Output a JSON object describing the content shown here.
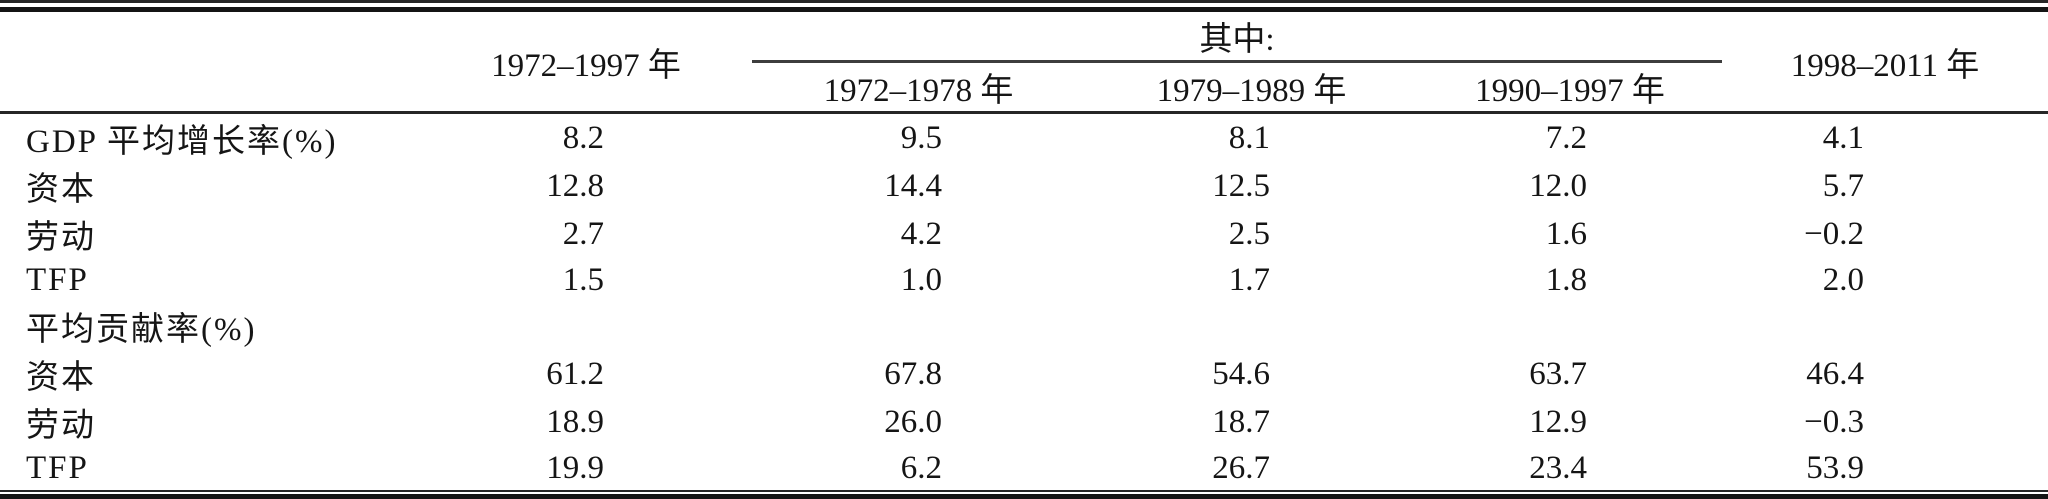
{
  "header": {
    "stub": "",
    "full_period": "1972–1997 年",
    "group_label": "其中:",
    "sub_periods": [
      "1972–1978 年",
      "1979–1989 年",
      "1990–1997 年"
    ],
    "late_period": "1998–2011 年"
  },
  "rows": [
    {
      "label": "GDP 平均增长率(%)",
      "values": [
        "8.2",
        "9.5",
        "8.1",
        "7.2",
        "4.1"
      ]
    },
    {
      "label": "资本",
      "values": [
        "12.8",
        "14.4",
        "12.5",
        "12.0",
        "5.7"
      ]
    },
    {
      "label": "劳动",
      "values": [
        "2.7",
        "4.2",
        "2.5",
        "1.6",
        "−0.2"
      ]
    },
    {
      "label": "TFP",
      "values": [
        "1.5",
        "1.0",
        "1.7",
        "1.8",
        "2.0"
      ]
    },
    {
      "label": "平均贡献率(%)",
      "values": [
        "",
        "",
        "",
        "",
        ""
      ]
    },
    {
      "label": "资本",
      "values": [
        "61.2",
        "67.8",
        "54.6",
        "63.7",
        "46.4"
      ]
    },
    {
      "label": "劳动",
      "values": [
        "18.9",
        "26.0",
        "18.7",
        "12.9",
        "−0.3"
      ]
    },
    {
      "label": "TFP",
      "values": [
        "19.9",
        "6.2",
        "26.7",
        "23.4",
        "53.9"
      ]
    }
  ],
  "colors": {
    "rule_thick": "#141414",
    "rule_thin": "#262626",
    "rule_spanner": "#3d3d3d",
    "text": "#151515",
    "background": "#ffffff"
  },
  "chart_data": {
    "type": "table",
    "title": "",
    "column_headers": [
      "",
      "1972–1997 年",
      "1972–1978 年",
      "1979–1989 年",
      "1990–1997 年",
      "1998–2011 年"
    ],
    "group_header": {
      "label": "其中:",
      "covers_columns": [
        "1972–1978 年",
        "1979–1989 年",
        "1990–1997 年"
      ]
    },
    "rows": [
      [
        "GDP 平均增长率(%)",
        8.2,
        9.5,
        8.1,
        7.2,
        4.1
      ],
      [
        "资本",
        12.8,
        14.4,
        12.5,
        12.0,
        5.7
      ],
      [
        "劳动",
        2.7,
        4.2,
        2.5,
        1.6,
        -0.2
      ],
      [
        "TFP",
        1.5,
        1.0,
        1.7,
        1.8,
        2.0
      ],
      [
        "平均贡献率(%)",
        null,
        null,
        null,
        null,
        null
      ],
      [
        "资本",
        61.2,
        67.8,
        54.6,
        63.7,
        46.4
      ],
      [
        "劳动",
        18.9,
        26.0,
        18.7,
        12.9,
        -0.3
      ],
      [
        "TFP",
        19.9,
        6.2,
        26.7,
        23.4,
        53.9
      ]
    ]
  }
}
